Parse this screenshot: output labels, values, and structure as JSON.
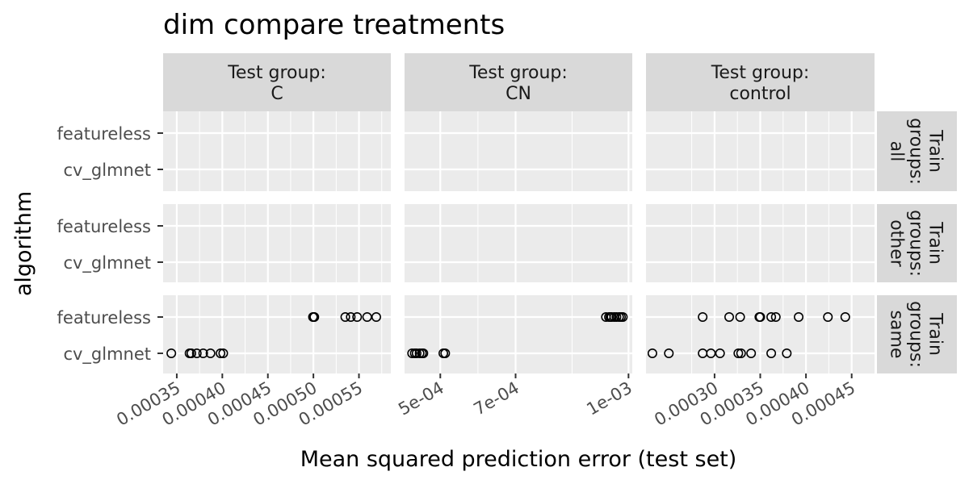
{
  "title": "dim compare treatments",
  "xlabel": "Mean squared prediction error (test set)",
  "ylabel": "algorithm",
  "chart_data": {
    "type": "scatter",
    "title": "dim compare treatments",
    "xlabel": "Mean squared prediction error (test set)",
    "ylabel": "algorithm",
    "categories": [
      "featureless",
      "cv_glmnet"
    ],
    "facet_cols": [
      {
        "label": "Test group:\nC",
        "xlim": [
          0.000335,
          0.000585
        ],
        "ticks": [
          0.00035,
          0.0004,
          0.00045,
          0.0005,
          0.00055
        ],
        "tick_labels": [
          "0.00035",
          "0.00040",
          "0.00045",
          "0.00050",
          "0.00055"
        ]
      },
      {
        "label": "Test group:\nCN",
        "xlim": [
          0.000405,
          0.00101
        ],
        "ticks": [
          0.0005,
          0.0007,
          0.001
        ],
        "tick_labels": [
          "5e-04",
          "7e-04",
          "1e-03"
        ]
      },
      {
        "label": "Test group:\ncontrol",
        "xlim": [
          0.000225,
          0.000475
        ],
        "ticks": [
          0.0003,
          0.00035,
          0.0004,
          0.00045
        ],
        "tick_labels": [
          "0.00030",
          "0.00035",
          "0.00040",
          "0.00045"
        ]
      }
    ],
    "facet_rows": [
      {
        "label": "Train\ngroups:\nall"
      },
      {
        "label": "Train\ngroups:\nother"
      },
      {
        "label": "Train\ngroups:\nsame"
      }
    ],
    "points": [
      {
        "col": 0,
        "row": 2,
        "algorithm": "featureless",
        "x": [
          0.0004995,
          0.0005005,
          0.000501,
          0.000535,
          0.000541,
          0.000548,
          0.000559,
          0.000569
        ]
      },
      {
        "col": 0,
        "row": 2,
        "algorithm": "cv_glmnet",
        "x": [
          0.000344,
          0.000364,
          0.000366,
          0.000372,
          0.000379,
          0.000387,
          0.000398,
          0.000401
        ]
      },
      {
        "col": 1,
        "row": 2,
        "algorithm": "featureless",
        "x": [
          0.00094,
          0.000948,
          0.000952,
          0.000955,
          0.000962,
          0.000968,
          0.000975,
          0.00098,
          0.000985
        ]
      },
      {
        "col": 1,
        "row": 2,
        "algorithm": "cv_glmnet",
        "x": [
          0.000425,
          0.000432,
          0.000437,
          0.000445,
          0.000451,
          0.000455,
          0.000508,
          0.000513
        ]
      },
      {
        "col": 2,
        "row": 2,
        "algorithm": "featureless",
        "x": [
          0.000287,
          0.000316,
          0.000328,
          0.000349,
          0.00035,
          0.000362,
          0.000367,
          0.000392,
          0.000424,
          0.000443
        ]
      },
      {
        "col": 2,
        "row": 2,
        "algorithm": "cv_glmnet",
        "x": [
          0.000232,
          0.00025,
          0.000287,
          0.000296,
          0.000306,
          0.000326,
          0.000329,
          0.00034,
          0.000362,
          0.000379
        ]
      }
    ],
    "grid": true
  }
}
